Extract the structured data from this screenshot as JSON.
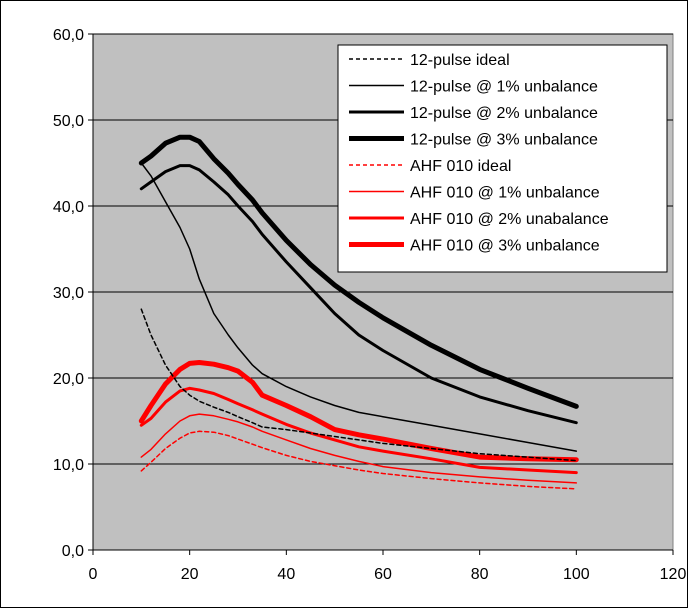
{
  "chart_data": {
    "type": "line",
    "xlim": [
      0,
      120
    ],
    "ylim": [
      0,
      60
    ],
    "x_ticks": [
      "0",
      "20",
      "40",
      "60",
      "80",
      "100",
      "120"
    ],
    "y_ticks": [
      "0,0",
      "10,0",
      "20,0",
      "30,0",
      "40,0",
      "50,0",
      "60,0"
    ],
    "grid": "horizontal",
    "plot_background": "#c0c0c0",
    "legend_position": "top-right",
    "x": [
      10,
      12,
      15,
      18,
      20,
      22,
      25,
      28,
      30,
      33,
      35,
      40,
      45,
      50,
      55,
      60,
      70,
      80,
      90,
      100
    ],
    "series": [
      {
        "name": "12-pulse ideal",
        "color": "#000000",
        "width": 1.5,
        "dash": "4,3",
        "values": [
          28.0,
          25.0,
          21.5,
          19.0,
          18.0,
          17.3,
          16.6,
          16.0,
          15.5,
          14.8,
          14.3,
          14.0,
          13.6,
          13.2,
          12.8,
          12.4,
          11.8,
          11.2,
          10.8,
          10.4
        ]
      },
      {
        "name": "12-pulse @ 1% unbalance",
        "color": "#000000",
        "width": 1.5,
        "dash": "",
        "values": [
          45.0,
          43.5,
          40.5,
          37.5,
          35.0,
          31.5,
          27.5,
          25.0,
          23.5,
          21.5,
          20.5,
          19.0,
          17.8,
          16.8,
          16.0,
          15.5,
          14.5,
          13.5,
          12.5,
          11.5
        ]
      },
      {
        "name": "12-pulse @ 2% unbalance",
        "color": "#000000",
        "width": 3,
        "dash": "",
        "values": [
          42.0,
          42.8,
          44.0,
          44.7,
          44.7,
          44.2,
          42.8,
          41.3,
          40.0,
          38.2,
          36.7,
          33.5,
          30.5,
          27.5,
          25.0,
          23.2,
          20.0,
          17.8,
          16.2,
          14.8
        ]
      },
      {
        "name": "12-pulse @ 3% unbalance",
        "color": "#000000",
        "width": 5,
        "dash": "",
        "values": [
          45.0,
          45.8,
          47.3,
          48.0,
          48.0,
          47.5,
          45.5,
          43.8,
          42.5,
          40.7,
          39.2,
          36.0,
          33.2,
          30.8,
          28.8,
          27.0,
          23.8,
          21.0,
          18.8,
          16.7
        ]
      },
      {
        "name": "AHF 010 ideal",
        "color": "#ff0000",
        "width": 1.5,
        "dash": "4,3",
        "values": [
          9.2,
          10.2,
          11.8,
          13.0,
          13.6,
          13.8,
          13.7,
          13.3,
          12.9,
          12.3,
          11.9,
          11.0,
          10.3,
          9.8,
          9.3,
          8.9,
          8.3,
          7.8,
          7.4,
          7.1
        ]
      },
      {
        "name": "AHF 010 @ 1% unbalance",
        "color": "#ff0000",
        "width": 1.5,
        "dash": "",
        "values": [
          10.8,
          11.7,
          13.5,
          15.0,
          15.6,
          15.8,
          15.6,
          15.2,
          14.9,
          14.3,
          13.8,
          12.8,
          11.8,
          11.0,
          10.3,
          9.7,
          9.0,
          8.5,
          8.1,
          7.8
        ]
      },
      {
        "name": "AHF 010 @ 2% unabalance",
        "color": "#ff0000",
        "width": 3,
        "dash": "",
        "values": [
          14.5,
          15.3,
          17.2,
          18.5,
          18.8,
          18.6,
          18.2,
          17.5,
          17.0,
          16.3,
          15.8,
          14.6,
          13.6,
          12.8,
          12.0,
          11.5,
          10.6,
          9.6,
          9.3,
          9.0
        ]
      },
      {
        "name": "AHF 010 @ 3% unbalance",
        "color": "#ff0000",
        "width": 5,
        "dash": "",
        "values": [
          15.0,
          16.8,
          19.3,
          21.0,
          21.7,
          21.8,
          21.6,
          21.2,
          20.8,
          19.5,
          18.0,
          16.8,
          15.5,
          14.0,
          13.4,
          12.9,
          11.8,
          10.8,
          10.6,
          10.5
        ]
      }
    ]
  }
}
